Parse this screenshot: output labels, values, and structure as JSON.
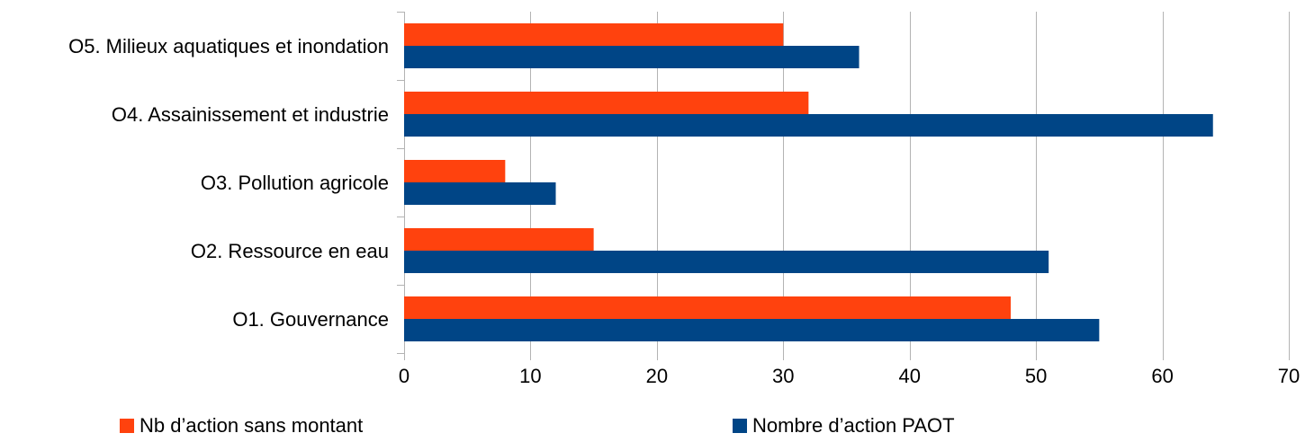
{
  "chart_data": {
    "type": "bar",
    "orientation": "horizontal",
    "categories": [
      "O1. Gouvernance",
      "O2. Ressource en eau",
      "O3. Pollution agricole",
      "O4. Assainissement et industrie",
      "O5. Milieux aquatiques et inondation"
    ],
    "series": [
      {
        "name": "Nb d’action sans montant",
        "color": "#ff420e",
        "values": [
          48,
          15,
          8,
          32,
          30
        ]
      },
      {
        "name": "Nombre d’action PAOT",
        "color": "#004586",
        "values": [
          55,
          51,
          12,
          64,
          36
        ]
      }
    ],
    "xlim": [
      0,
      70
    ],
    "xticks": [
      "0",
      "10",
      "20",
      "30",
      "40",
      "50",
      "60",
      "70"
    ],
    "title": "",
    "xlabel": "",
    "ylabel": "",
    "grid": true,
    "legend_position": "bottom"
  }
}
